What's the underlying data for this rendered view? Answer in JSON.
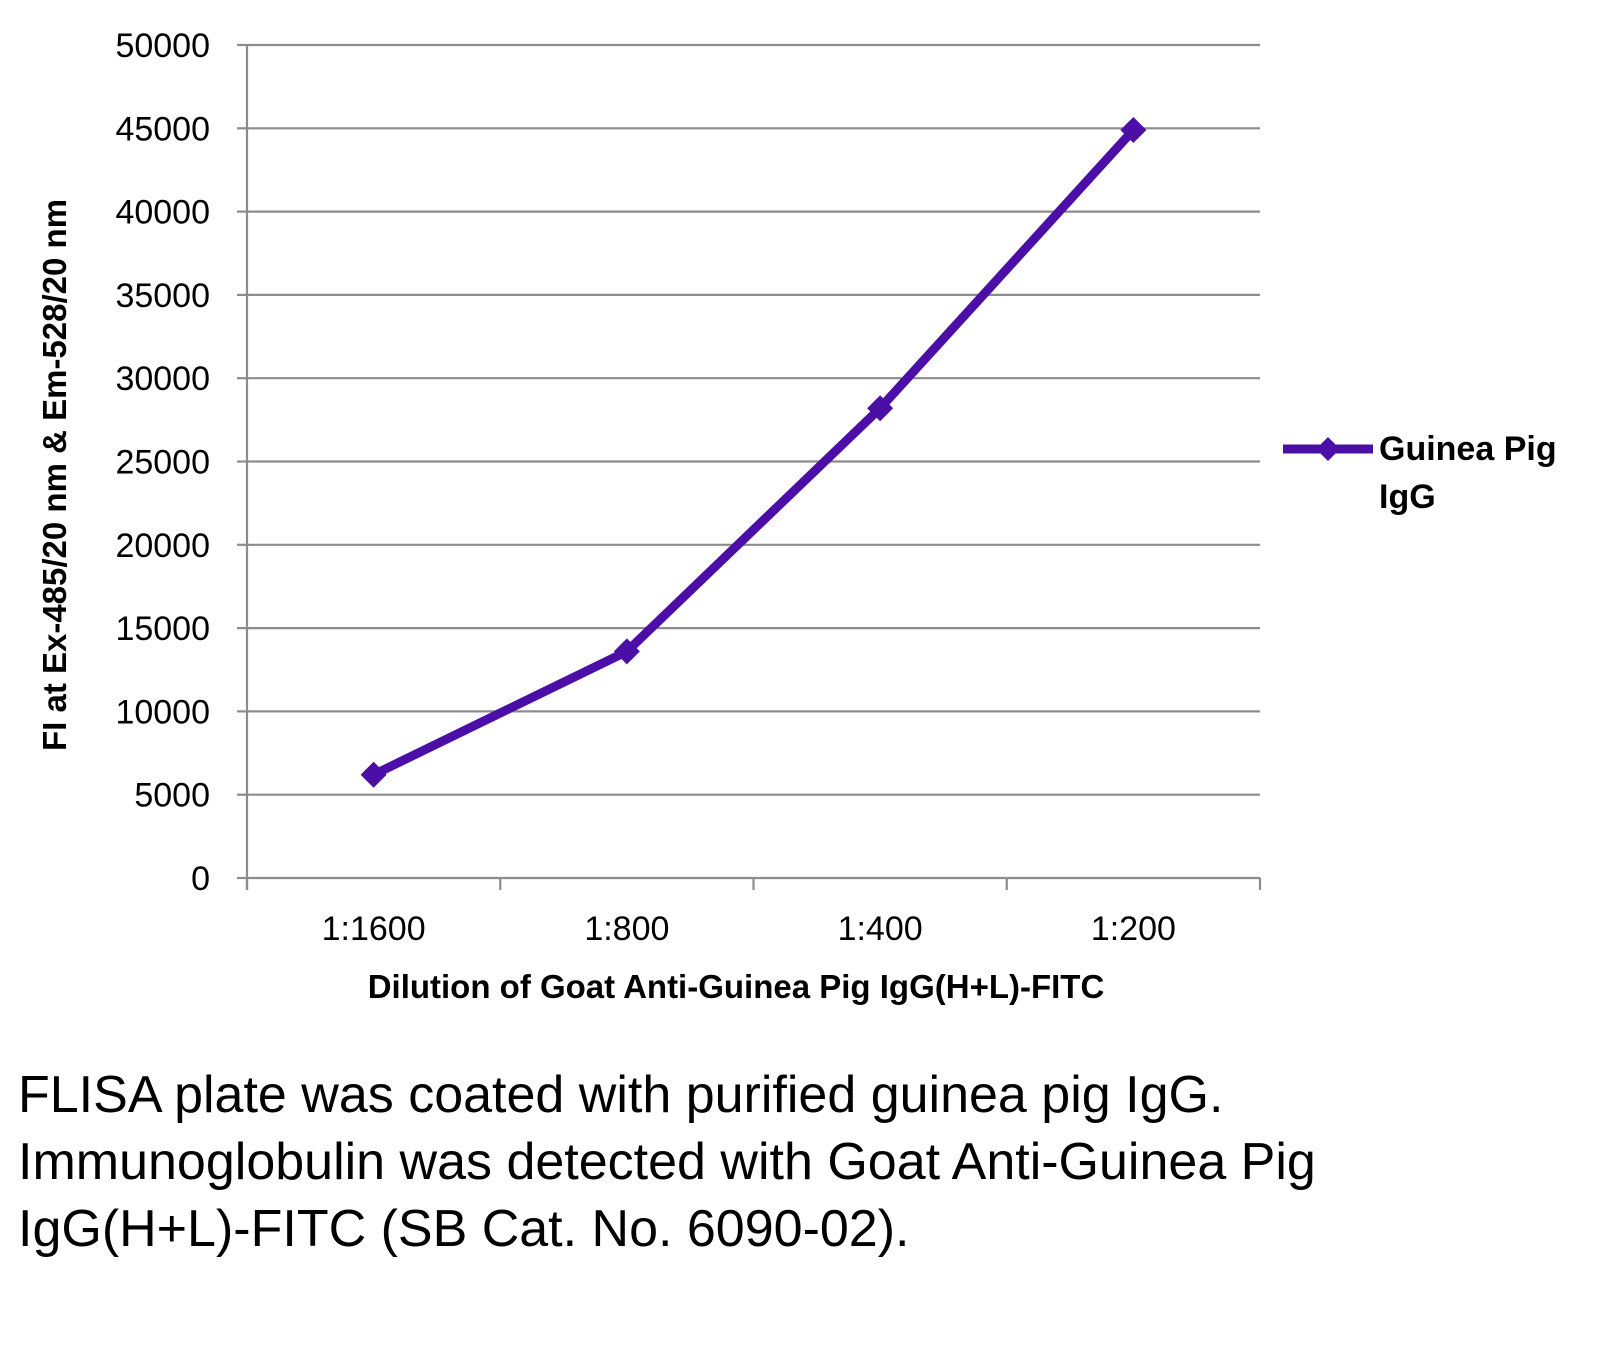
{
  "chart_data": {
    "type": "line",
    "categories": [
      "1:1600",
      "1:800",
      "1:400",
      "1:200"
    ],
    "series": [
      {
        "name": "Guinea Pig IgG",
        "values": [
          6200,
          13600,
          28200,
          44900
        ],
        "color": "#4B0FA8"
      }
    ],
    "xlabel": "Dilution of Goat Anti-Guinea Pig IgG(H+L)-FITC",
    "ylabel": "FI at Ex-485/20 nm & Em-528/20 nm",
    "ylim": [
      0,
      50000
    ],
    "yticks": [
      0,
      5000,
      10000,
      15000,
      20000,
      25000,
      30000,
      35000,
      40000,
      45000,
      50000
    ],
    "grid": true,
    "legend": "right",
    "marker": "diamond"
  },
  "legend": {
    "line1": "Guinea Pig",
    "line2": "IgG"
  },
  "caption": "FLISA plate was coated with purified guinea pig IgG.  Immunoglobulin was detected with Goat Anti-Guinea Pig IgG(H+L)-FITC (SB Cat. No. 6090-02)."
}
